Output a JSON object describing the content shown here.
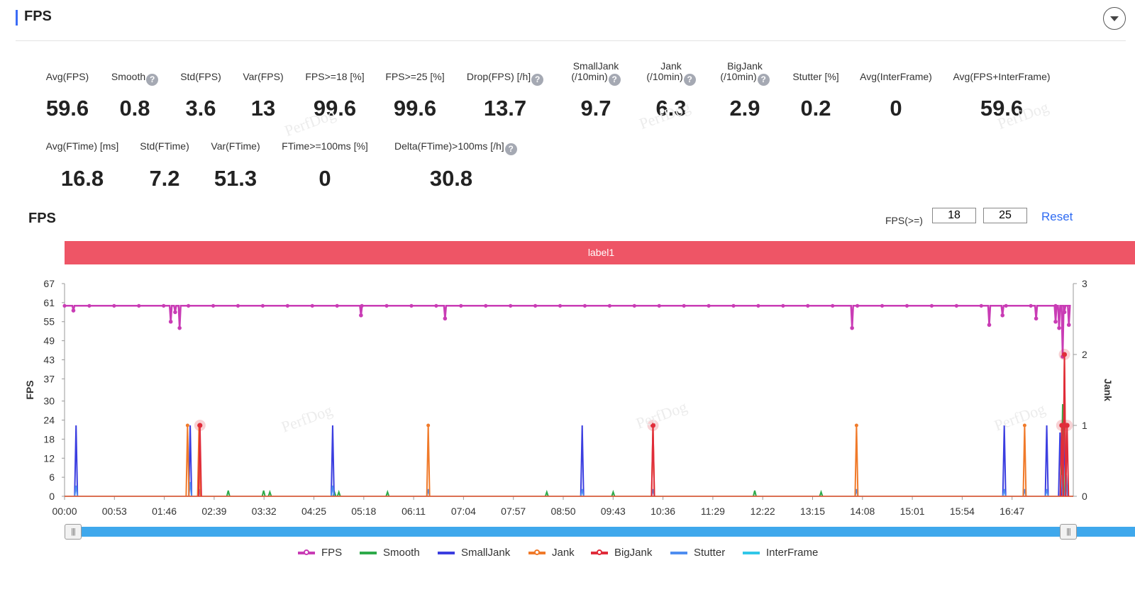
{
  "header": {
    "title": "FPS"
  },
  "colors": {
    "accent": "#3b6cf6",
    "fps": "#c93cb5",
    "smooth": "#2eaa4a",
    "small_jank": "#3b3ee0",
    "jank": "#f07a2a",
    "big_jank": "#e02c3a",
    "stutter": "#4f8ef0",
    "interframe": "#31c7e8",
    "label_band": "#ee5566",
    "slider": "#3fa8ec",
    "reset_link": "#2f6bf2"
  },
  "icons": {
    "collapse": "chevron-down-icon",
    "help": "question-icon",
    "slider_handle": "grip-icon"
  },
  "stats_row1": [
    {
      "label": "Avg(FPS)",
      "value": "59.6"
    },
    {
      "label": "Smooth",
      "value": "0.8"
    },
    {
      "label": "Std(FPS)",
      "value": "3.6"
    },
    {
      "label": "Var(FPS)",
      "value": "13"
    },
    {
      "label": "FPS>=18 [%]",
      "value": "99.6"
    },
    {
      "label": "FPS>=25 [%]",
      "value": "99.6"
    },
    {
      "label": "Drop(FPS) [/h]",
      "value": "13.7"
    },
    {
      "label_line1": "SmallJank",
      "label_line2": "(/10min)",
      "value": "9.7"
    },
    {
      "label_line1": "Jank",
      "label_line2": "(/10min)",
      "value": "6.3"
    },
    {
      "label_line1": "BigJank",
      "label_line2": "(/10min)",
      "value": "2.9"
    },
    {
      "label": "Stutter [%]",
      "value": "0.2"
    },
    {
      "label": "Avg(InterFrame)",
      "value": "0"
    },
    {
      "label": "Avg(FPS+InterFrame)",
      "value": "59.6"
    }
  ],
  "stats_row2": [
    {
      "label": "Avg(FTime) [ms]",
      "value": "16.8"
    },
    {
      "label": "Std(FTime)",
      "value": "7.2"
    },
    {
      "label": "Var(FTime)",
      "value": "51.3"
    },
    {
      "label": "FTime>=100ms [%]",
      "value": "0"
    },
    {
      "label": "Delta(FTime)>100ms [/h]",
      "value": "30.8"
    }
  ],
  "watermark": "PerfDog",
  "chart_section": {
    "title": "FPS",
    "fps_filter_label": "FPS(>=)",
    "fps_threshold_low": "18",
    "fps_threshold_high": "25",
    "reset_label": "Reset",
    "label_band": "label1"
  },
  "chart_data": {
    "type": "line",
    "x_tick_labels": [
      "00:00",
      "00:53",
      "01:46",
      "02:39",
      "03:32",
      "04:25",
      "05:18",
      "06:11",
      "07:04",
      "07:57",
      "08:50",
      "09:43",
      "10:36",
      "11:29",
      "12:22",
      "13:15",
      "14:08",
      "15:01",
      "15:54",
      "16:47"
    ],
    "x_range_seconds": [
      0,
      1140
    ],
    "ylabel_left": "FPS",
    "yticks_left": [
      0,
      6,
      12,
      18,
      24,
      30,
      37,
      43,
      49,
      55,
      61,
      67
    ],
    "ylim_left": [
      0,
      67
    ],
    "ylabel_right": "Jank",
    "yticks_right": [
      0,
      1,
      2,
      3
    ],
    "ylim_right": [
      0,
      3
    ],
    "series": [
      {
        "name": "FPS",
        "axis": "left",
        "baseline": 60,
        "dips": [
          [
            10,
            58.5
          ],
          [
            120,
            55
          ],
          [
            125,
            58
          ],
          [
            130,
            53
          ],
          [
            335,
            57
          ],
          [
            430,
            56
          ],
          [
            890,
            53
          ],
          [
            1045,
            54
          ],
          [
            1060,
            57
          ],
          [
            1098,
            56
          ],
          [
            1120,
            55
          ],
          [
            1124,
            53
          ],
          [
            1128,
            44
          ],
          [
            1130,
            58
          ],
          [
            1135,
            54
          ]
        ]
      },
      {
        "name": "Smooth",
        "axis": "right",
        "spikes": [
          [
            185,
            0.08
          ],
          [
            225,
            0.08
          ],
          [
            232,
            0.06
          ],
          [
            305,
            0.06
          ],
          [
            310,
            0.06
          ],
          [
            365,
            0.06
          ],
          [
            545,
            0.06
          ],
          [
            620,
            0.06
          ],
          [
            780,
            0.08
          ],
          [
            855,
            0.06
          ],
          [
            1128,
            1.3
          ]
        ]
      },
      {
        "name": "SmallJank",
        "axis": "right",
        "spikes": [
          [
            13,
            1
          ],
          [
            142,
            1
          ],
          [
            303,
            1
          ],
          [
            585,
            1
          ],
          [
            1062,
            1
          ],
          [
            1110,
            1
          ],
          [
            1125,
            0.9
          ],
          [
            1130,
            0.9
          ]
        ]
      },
      {
        "name": "Jank",
        "axis": "right",
        "spikes": [
          [
            139,
            1
          ],
          [
            152,
            1
          ],
          [
            411,
            1
          ],
          [
            665,
            1
          ],
          [
            895,
            1
          ],
          [
            1085,
            1
          ],
          [
            1127,
            1
          ],
          [
            1130,
            2
          ]
        ]
      },
      {
        "name": "BigJank",
        "axis": "right",
        "spikes": [
          [
            153,
            1
          ],
          [
            665,
            1
          ],
          [
            1127,
            1
          ],
          [
            1130,
            2
          ],
          [
            1133,
            1
          ]
        ]
      },
      {
        "name": "Stutter",
        "axis": "right",
        "spikes": [
          [
            13,
            0.15
          ],
          [
            142,
            0.2
          ],
          [
            152,
            0.1
          ],
          [
            303,
            0.15
          ],
          [
            411,
            0.1
          ],
          [
            585,
            0.1
          ],
          [
            665,
            0.1
          ],
          [
            895,
            0.1
          ],
          [
            1062,
            0.1
          ],
          [
            1085,
            0.1
          ],
          [
            1110,
            0.1
          ],
          [
            1127,
            0.3
          ],
          [
            1132,
            0.3
          ]
        ]
      },
      {
        "name": "InterFrame",
        "axis": "right",
        "spikes": []
      }
    ],
    "legend_position": "bottom",
    "grid": false
  }
}
